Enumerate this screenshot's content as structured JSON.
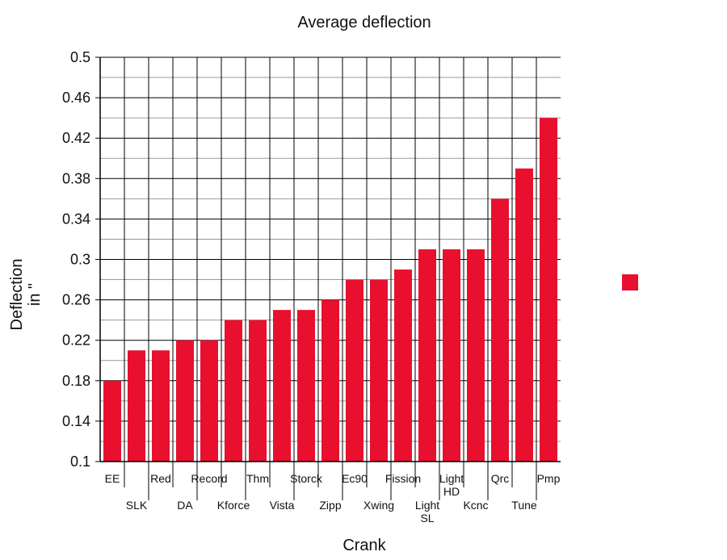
{
  "chart_data": {
    "type": "bar",
    "title": "Average deflection",
    "xlabel": "Crank",
    "ylabel_lines": [
      "Deflection",
      "in \""
    ],
    "ylim": [
      0.1,
      0.5
    ],
    "yticks": [
      "0.1",
      "0.14",
      "0.18",
      "0.22",
      "0.26",
      "0.3",
      "0.34",
      "0.38",
      "0.42",
      "0.46",
      "0.5"
    ],
    "grid": true,
    "legend": "right",
    "color": "#e8102e",
    "categories": [
      [
        "EE"
      ],
      [
        "SLK"
      ],
      [
        "Red"
      ],
      [
        "DA"
      ],
      [
        "Record"
      ],
      [
        "Kforce"
      ],
      [
        "Thm"
      ],
      [
        "Vista"
      ],
      [
        "Storck"
      ],
      [
        "Zipp"
      ],
      [
        "Ec90"
      ],
      [
        "Xwing"
      ],
      [
        "Fission"
      ],
      [
        "Light",
        "SL"
      ],
      [
        "Light",
        "HD"
      ],
      [
        "Kcnc"
      ],
      [
        "Qrc"
      ],
      [
        "Tune"
      ],
      [
        "Pmp"
      ]
    ],
    "values": [
      0.18,
      0.21,
      0.21,
      0.22,
      0.22,
      0.24,
      0.24,
      0.25,
      0.25,
      0.26,
      0.28,
      0.28,
      0.29,
      0.31,
      0.31,
      0.31,
      0.36,
      0.39,
      0.44
    ]
  }
}
